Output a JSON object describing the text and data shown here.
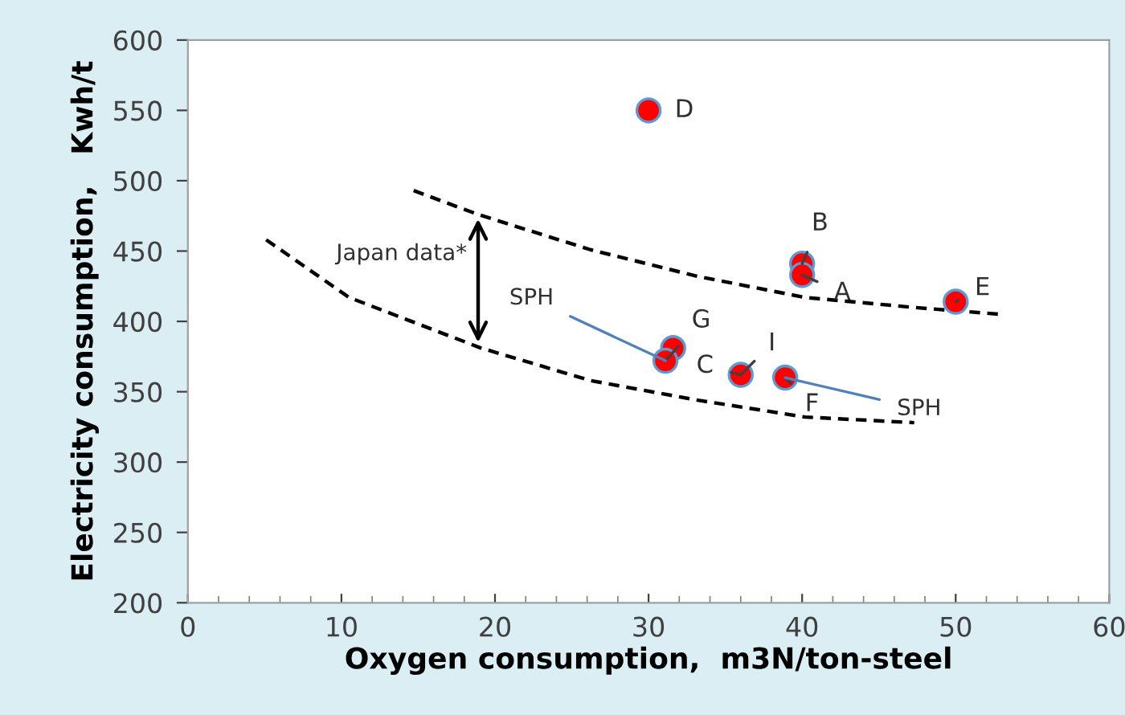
{
  "chart_data": {
    "type": "scatter",
    "xlabel": "Oxygen consumption,  m3N/ton-steel",
    "ylabel": "Electricity consumption,   Kwh/t",
    "xlim": [
      0,
      60
    ],
    "ylim": [
      200,
      600
    ],
    "xticks": [
      0,
      10,
      20,
      30,
      40,
      50,
      60
    ],
    "yticks": [
      200,
      250,
      300,
      350,
      400,
      450,
      500,
      550,
      600
    ],
    "grid": false,
    "marker": "circle",
    "series": [
      {
        "color": "#ff0000",
        "x": [
          30,
          40,
          40,
          50,
          31.6,
          31.1,
          36,
          38.9
        ],
        "values": [
          550,
          441,
          433,
          414,
          381,
          372,
          362,
          360
        ]
      },
      {
        "type": "line",
        "line_style": "dashed",
        "marker": "none",
        "color": "#000000",
        "x": [
          14.7,
          18.9,
          26.2,
          33.2,
          40.2,
          47.2,
          53
        ],
        "values": [
          493,
          476,
          451,
          432,
          417,
          410,
          405
        ]
      },
      {
        "type": "line",
        "line_style": "dashed",
        "marker": "none",
        "color": "#000000",
        "x": [
          5.1,
          10.5,
          19.1,
          26.2,
          33.2,
          40.2,
          47.3
        ],
        "values": [
          458,
          417,
          381,
          358,
          344,
          332,
          328
        ]
      }
    ],
    "annotations": [
      {
        "text": "D",
        "x": 30,
        "y": 550
      },
      {
        "text": "B",
        "x": 40,
        "y": 441
      },
      {
        "text": "A",
        "x": 40,
        "y": 433
      },
      {
        "text": "E",
        "x": 50,
        "y": 414
      },
      {
        "text": "G",
        "x": 31.1,
        "y": 372
      },
      {
        "text": "C",
        "x": 36,
        "y": 362
      },
      {
        "text": "I",
        "x": 36,
        "y": 362
      },
      {
        "text": "F",
        "x": 38.9,
        "y": 360
      },
      {
        "text": "SPH",
        "x": 31.1,
        "y": 372
      },
      {
        "text": "SPH",
        "x": 38.9,
        "y": 360
      },
      {
        "text": "Japan data*",
        "x": 18.9,
        "y": 476
      }
    ]
  }
}
